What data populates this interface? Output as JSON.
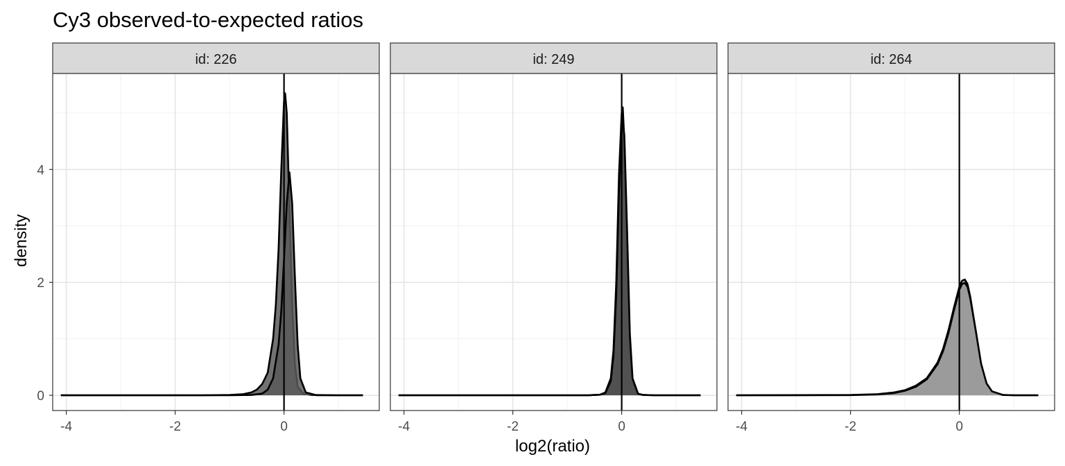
{
  "chart_data": {
    "type": "area",
    "title": "Cy3 observed-to-expected ratios",
    "xlabel": "log2(ratio)",
    "ylabel": "density",
    "xlim": [
      -4.25,
      1.75
    ],
    "ylim": [
      -0.27,
      5.7
    ],
    "x_ticks": [
      -4,
      -2,
      0
    ],
    "x_tick_labels": [
      "-4",
      "-2",
      "0"
    ],
    "y_ticks": [
      0,
      2,
      4
    ],
    "y_tick_labels": [
      "0",
      "2",
      "4"
    ],
    "grid": true,
    "vline_x": 0,
    "panels": [
      {
        "strip_label": "id: 226",
        "fill_color": "#595959",
        "series": [
          {
            "x": [
              -4.1,
              -1.5,
              -1.0,
              -0.75,
              -0.6,
              -0.5,
              -0.4,
              -0.3,
              -0.2,
              -0.15,
              -0.1,
              -0.05,
              0,
              0.02,
              0.05,
              0.1,
              0.15,
              0.2,
              0.25,
              0.35,
              0.5,
              1.0,
              1.45
            ],
            "y": [
              0,
              0,
              0.005,
              0.02,
              0.05,
              0.1,
              0.2,
              0.4,
              1.0,
              1.6,
              2.6,
              4.0,
              5.2,
              5.35,
              5.0,
              3.3,
              1.6,
              0.55,
              0.15,
              0.03,
              0.005,
              0,
              0
            ]
          },
          {
            "x": [
              -4.1,
              -1.5,
              -1.0,
              -0.6,
              -0.4,
              -0.3,
              -0.2,
              -0.1,
              -0.05,
              0,
              0.05,
              0.1,
              0.15,
              0.2,
              0.25,
              0.3,
              0.4,
              0.6,
              1.0,
              1.45
            ],
            "y": [
              0,
              0,
              0,
              0.005,
              0.03,
              0.1,
              0.3,
              0.9,
              1.5,
              2.4,
              3.4,
              3.95,
              3.4,
              2.1,
              0.9,
              0.3,
              0.05,
              0,
              0,
              0
            ]
          }
        ]
      },
      {
        "strip_label": "id: 249",
        "fill_color": "#4d4d4d",
        "series": [
          {
            "x": [
              -4.1,
              -1.0,
              -0.6,
              -0.4,
              -0.3,
              -0.2,
              -0.15,
              -0.1,
              -0.05,
              0,
              0.02,
              0.05,
              0.1,
              0.15,
              0.2,
              0.3,
              0.4,
              0.6,
              1.0,
              1.45
            ],
            "y": [
              0,
              0,
              0.002,
              0.01,
              0.05,
              0.3,
              0.8,
              2.0,
              3.9,
              5.0,
              5.1,
              4.5,
              2.6,
              0.9,
              0.25,
              0.02,
              0.005,
              0,
              0,
              0
            ]
          },
          {
            "x": [
              -4.1,
              -1.0,
              -0.6,
              -0.4,
              -0.3,
              -0.2,
              -0.15,
              -0.1,
              -0.05,
              0,
              0.02,
              0.05,
              0.1,
              0.15,
              0.2,
              0.3,
              0.4,
              0.6,
              1.0,
              1.45
            ],
            "y": [
              0,
              0,
              0.002,
              0.01,
              0.04,
              0.25,
              0.7,
              1.8,
              3.6,
              4.7,
              4.85,
              4.6,
              2.9,
              1.1,
              0.3,
              0.03,
              0.005,
              0,
              0,
              0
            ]
          }
        ]
      },
      {
        "strip_label": "id: 264",
        "fill_color": "#999999",
        "series": [
          {
            "x": [
              -4.1,
              -2.0,
              -1.5,
              -1.2,
              -1.0,
              -0.8,
              -0.6,
              -0.4,
              -0.3,
              -0.2,
              -0.1,
              0,
              0.05,
              0.1,
              0.15,
              0.2,
              0.3,
              0.4,
              0.5,
              0.6,
              0.8,
              1.0,
              1.45
            ],
            "y": [
              0,
              0.005,
              0.02,
              0.05,
              0.09,
              0.17,
              0.3,
              0.58,
              0.82,
              1.15,
              1.55,
              1.92,
              2.03,
              2.05,
              1.97,
              1.75,
              1.15,
              0.55,
              0.2,
              0.06,
              0.005,
              0,
              0
            ]
          },
          {
            "x": [
              -4.1,
              -2.0,
              -1.5,
              -1.2,
              -1.0,
              -0.8,
              -0.6,
              -0.4,
              -0.3,
              -0.2,
              -0.1,
              0,
              0.05,
              0.1,
              0.15,
              0.2,
              0.3,
              0.4,
              0.5,
              0.6,
              0.8,
              1.0,
              1.45
            ],
            "y": [
              0,
              0.003,
              0.015,
              0.04,
              0.08,
              0.15,
              0.28,
              0.55,
              0.78,
              1.1,
              1.5,
              1.87,
              1.97,
              1.99,
              1.92,
              1.72,
              1.15,
              0.56,
              0.21,
              0.07,
              0.006,
              0,
              0
            ]
          }
        ]
      }
    ]
  }
}
